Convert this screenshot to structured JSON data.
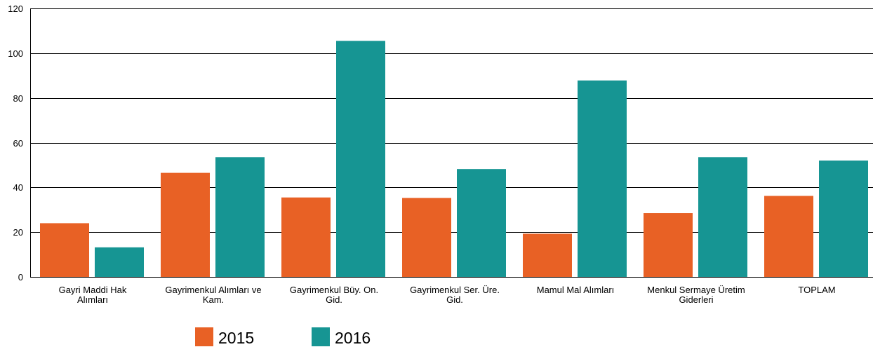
{
  "chart_data": {
    "type": "bar",
    "title": "",
    "xlabel": "",
    "ylabel": "",
    "ylim": [
      0,
      120
    ],
    "yticks": [
      0,
      20,
      40,
      60,
      80,
      100,
      120
    ],
    "yticks_text": [
      "0",
      "20",
      "40",
      "60",
      "80",
      "100",
      "120"
    ],
    "grid": true,
    "legend_position": "bottom-left",
    "categories": [
      [
        "Gayri Maddi Hak",
        "Alımları"
      ],
      [
        "Gayrimenkul Alımları ve",
        "Kam."
      ],
      [
        "Gayrimenkul Büy. On.",
        "Gid."
      ],
      [
        "Gayrimenkul Ser. Üre.",
        "Gid."
      ],
      [
        "Mamul Mal Alımları"
      ],
      [
        "Menkul Sermaye Üretim",
        "Giderleri"
      ],
      [
        "TOPLAM"
      ]
    ],
    "series": [
      {
        "name": "2015",
        "color": "#e86125",
        "values": [
          24,
          46.5,
          35.5,
          35.3,
          19.3,
          28.5,
          36.2
        ]
      },
      {
        "name": "2016",
        "color": "#169593",
        "values": [
          13.2,
          53.5,
          105.5,
          48.2,
          87.8,
          53.5,
          52
        ]
      }
    ]
  }
}
